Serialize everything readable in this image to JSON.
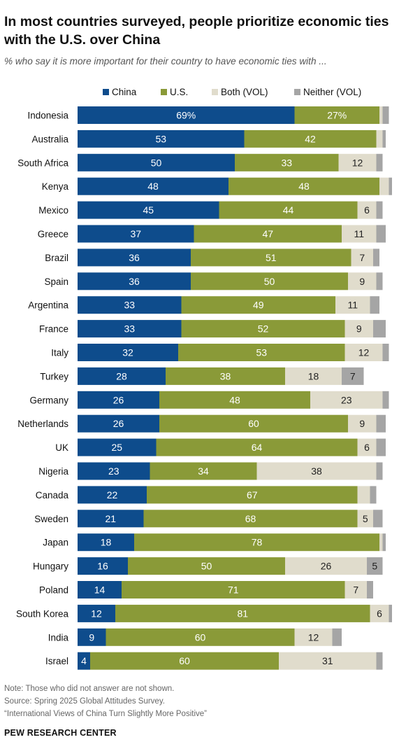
{
  "header": {
    "title": "In most countries surveyed, people prioritize economic ties with the U.S. over China",
    "subtitle": "% who say it is more important for their country to have economic ties with ..."
  },
  "colors": {
    "china": "#0e4c8c",
    "us": "#8a9a38",
    "both": "#e0dccc",
    "neither": "#a5a5a5"
  },
  "chart_data": {
    "type": "bar",
    "orientation": "horizontal",
    "stacked": true,
    "categories": [
      "Indonesia",
      "Australia",
      "South Africa",
      "Kenya",
      "Mexico",
      "Greece",
      "Brazil",
      "Spain",
      "Argentina",
      "France",
      "Italy",
      "Turkey",
      "Germany",
      "Netherlands",
      "UK",
      "Nigeria",
      "Canada",
      "Sweden",
      "Japan",
      "Hungary",
      "Poland",
      "South Korea",
      "India",
      "Israel"
    ],
    "series": [
      {
        "name": "China",
        "values": [
          69,
          53,
          50,
          48,
          45,
          37,
          36,
          36,
          33,
          33,
          32,
          28,
          26,
          26,
          25,
          23,
          22,
          21,
          18,
          16,
          14,
          12,
          9,
          4
        ]
      },
      {
        "name": "U.S.",
        "values": [
          27,
          42,
          33,
          48,
          44,
          47,
          51,
          50,
          49,
          52,
          53,
          38,
          48,
          60,
          64,
          34,
          67,
          68,
          78,
          50,
          71,
          81,
          60,
          60
        ]
      },
      {
        "name": "Both (VOL)",
        "values": [
          1,
          2,
          12,
          3,
          6,
          11,
          7,
          9,
          11,
          9,
          12,
          18,
          23,
          9,
          6,
          38,
          4,
          5,
          1,
          26,
          7,
          6,
          12,
          31
        ]
      },
      {
        "name": "Neither (VOL)",
        "values": [
          2,
          1,
          2,
          1,
          2,
          3,
          2,
          2,
          3,
          4,
          2,
          7,
          2,
          3,
          3,
          2,
          2,
          3,
          1,
          5,
          2,
          1,
          3,
          2
        ]
      }
    ],
    "value_labels": [
      [
        "69%",
        "27%",
        "",
        ""
      ],
      [
        "53",
        "42",
        "",
        ""
      ],
      [
        "50",
        "33",
        "12",
        ""
      ],
      [
        "48",
        "48",
        "",
        ""
      ],
      [
        "45",
        "44",
        "6",
        ""
      ],
      [
        "37",
        "47",
        "11",
        ""
      ],
      [
        "36",
        "51",
        "7",
        ""
      ],
      [
        "36",
        "50",
        "9",
        ""
      ],
      [
        "33",
        "49",
        "11",
        ""
      ],
      [
        "33",
        "52",
        "9",
        ""
      ],
      [
        "32",
        "53",
        "12",
        ""
      ],
      [
        "28",
        "38",
        "18",
        "7"
      ],
      [
        "26",
        "48",
        "23",
        ""
      ],
      [
        "26",
        "60",
        "9",
        ""
      ],
      [
        "25",
        "64",
        "6",
        ""
      ],
      [
        "23",
        "34",
        "38",
        ""
      ],
      [
        "22",
        "67",
        "",
        ""
      ],
      [
        "21",
        "68",
        "5",
        ""
      ],
      [
        "18",
        "78",
        "",
        ""
      ],
      [
        "16",
        "50",
        "26",
        "5"
      ],
      [
        "14",
        "71",
        "7",
        ""
      ],
      [
        "12",
        "81",
        "6",
        ""
      ],
      [
        "9",
        "60",
        "12",
        ""
      ],
      [
        "4",
        "60",
        "31",
        ""
      ]
    ],
    "legend": {
      "placement": "top",
      "labels": [
        "China",
        "U.S.",
        "Both (VOL)",
        "Neither (VOL)"
      ]
    },
    "xlim": [
      0,
      100
    ],
    "grid": false
  },
  "footer": {
    "note": "Note: Those who did not answer are not shown.",
    "source": "Source: Spring 2025 Global Attitudes Survey.",
    "report": "“International Views of China Turn Slightly More Positive”",
    "brand": "PEW RESEARCH CENTER"
  }
}
